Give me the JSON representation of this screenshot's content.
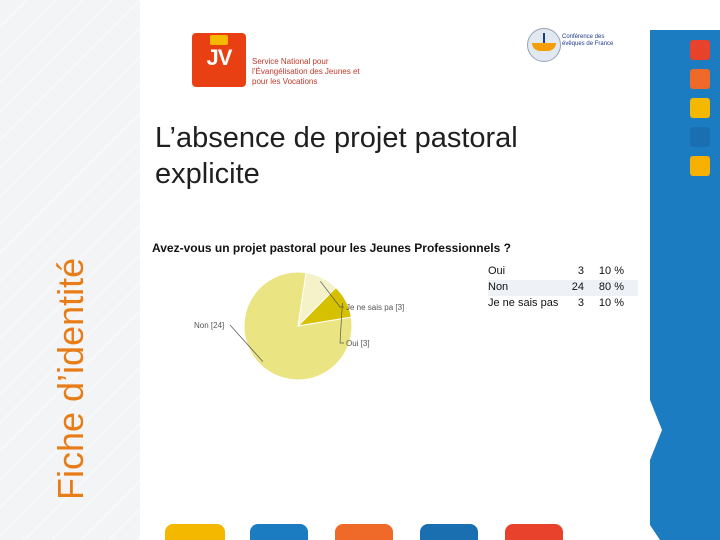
{
  "slide": {
    "side_title": "Fiche d’identité",
    "title": "L’absence de projet pastoral explicite"
  },
  "logos": {
    "jv_mark": "JV",
    "jv_text": "Service National pour l’Évangélisation des Jeunes et pour les Vocations",
    "cef_text": "Conférence des évêques de France"
  },
  "colors": {
    "accent_orange": "#e87d18",
    "red": "#e8412c",
    "yellow": "#f5b800",
    "blue": "#1c7cc1"
  },
  "chart_data": {
    "type": "pie",
    "title": "Avez-vous un projet pastoral pour les Jeunes Professionnels ?",
    "categories": [
      "Oui",
      "Non",
      "Je ne sais pas"
    ],
    "values": [
      3,
      24,
      3
    ],
    "percent_labels": [
      "10 %",
      "80 %",
      "10 %"
    ],
    "slice_labels": [
      "Oui [3]",
      "Non [24]",
      "Je ne sais pa [3]"
    ],
    "colors": [
      "#d6c100",
      "#ebe483",
      "#f5f2c9"
    ],
    "legend_placement": "right"
  }
}
